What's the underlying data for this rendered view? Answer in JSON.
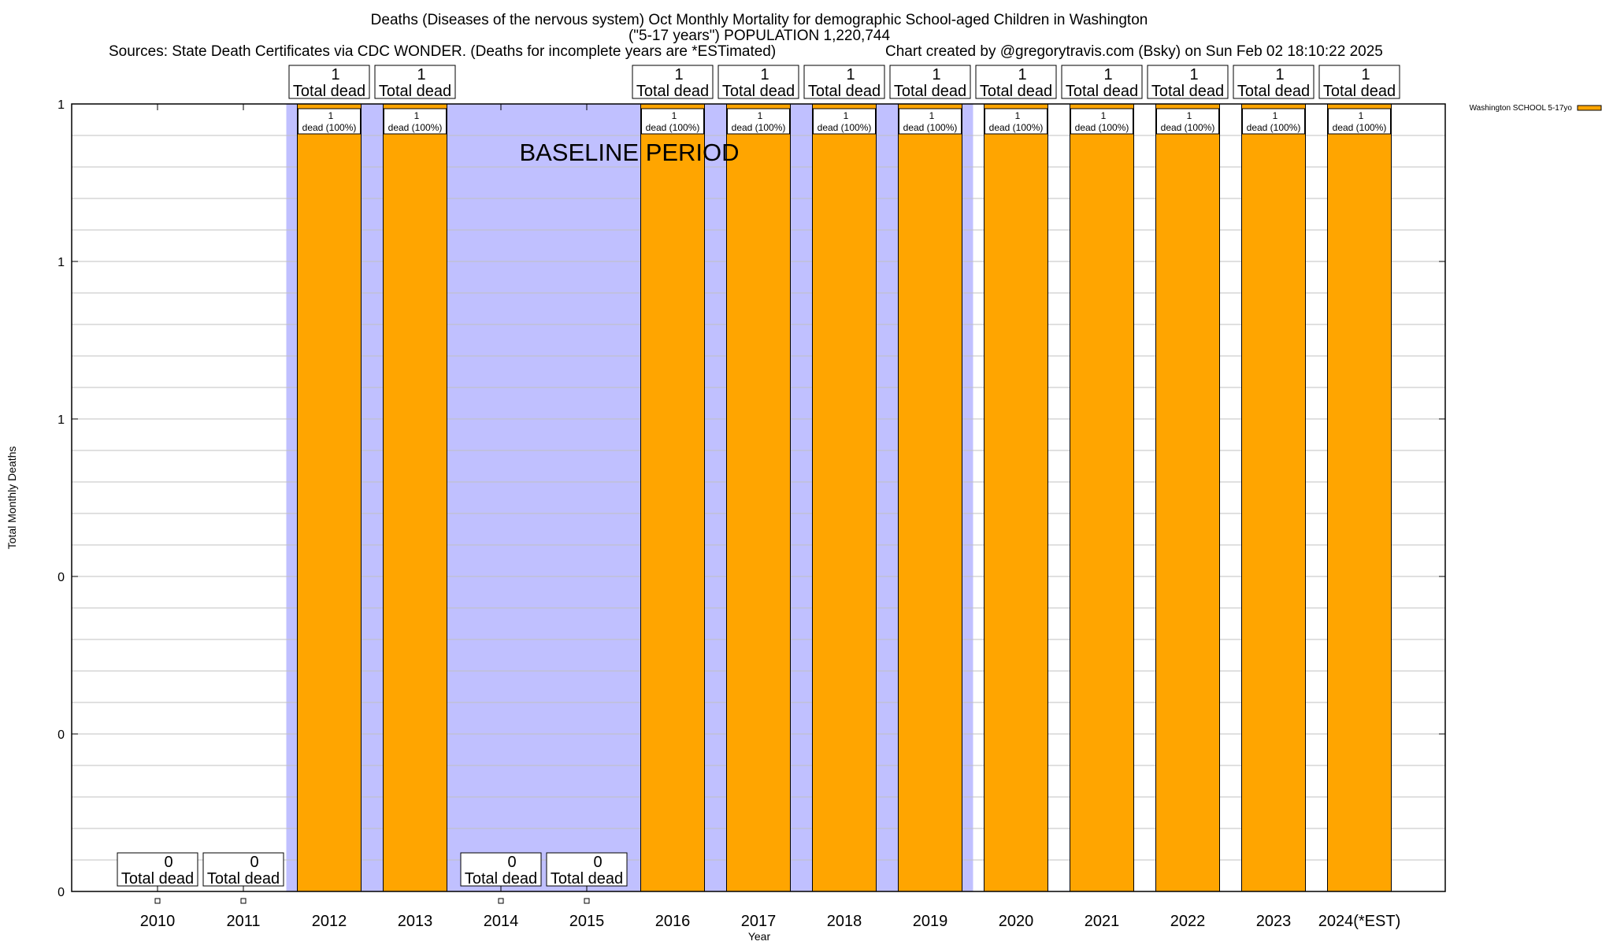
{
  "chart_data": {
    "type": "bar",
    "title_lines": [
      "Deaths (Diseases of the nervous system) Oct Monthly Mortality for demographic School-aged Children in Washington",
      "(\"5-17 years\") POPULATION 1,220,744"
    ],
    "sources": "Sources: State Death Certificates via CDC WONDER. (Deaths for incomplete years are *ESTimated)",
    "credit": "Chart created by @gregorytravis.com (Bsky) on Sun Feb 02 18:10:22 2025",
    "xlabel": "Year",
    "ylabel": "Total Monthly Deaths",
    "ylim": [
      0,
      1
    ],
    "y_ticks": [
      0,
      0.2,
      0.4,
      0.6,
      0.8,
      1.0
    ],
    "y_tick_labels": [
      "0",
      "0",
      "0",
      "1",
      "1",
      "1"
    ],
    "grid": true,
    "categories": [
      "2010",
      "2011",
      "2012",
      "2013",
      "2014",
      "2015",
      "2016",
      "2017",
      "2018",
      "2019",
      "2020",
      "2021",
      "2022",
      "2023",
      "2024(*EST)"
    ],
    "series": [
      {
        "name": "Washington SCHOOL 5-17yo",
        "color": "#ffa500",
        "values": [
          0,
          0,
          1,
          1,
          0,
          0,
          1,
          1,
          1,
          1,
          1,
          1,
          1,
          1,
          1
        ]
      }
    ],
    "total_label": "Total dead",
    "bar_label_suffix": "dead (100%)",
    "baseline": {
      "label": "BASELINE PERIOD",
      "from": "2011.5",
      "to": "2019.5",
      "color": "#c0c0ff"
    },
    "legend_position": "top-right"
  }
}
